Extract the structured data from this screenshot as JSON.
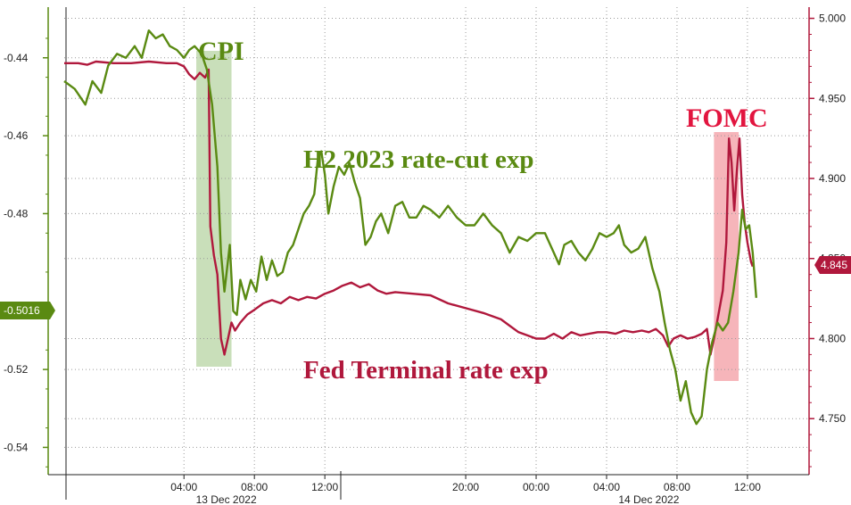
{
  "chart_data": {
    "type": "line",
    "left_axis": {
      "ticks": [
        "-0.44",
        "-0.46",
        "-0.48",
        "-0.52",
        "-0.54"
      ],
      "tick_values": [
        -0.44,
        -0.46,
        -0.48,
        -0.52,
        -0.54
      ],
      "range": [
        -0.547,
        -0.427
      ]
    },
    "right_axis": {
      "ticks": [
        "5.000",
        "4.950",
        "4.900",
        "4.850",
        "4.800",
        "4.750"
      ],
      "tick_values": [
        5.0,
        4.95,
        4.9,
        4.85,
        4.8,
        4.75
      ],
      "range": [
        4.715,
        5.007
      ]
    },
    "x_axis": {
      "ticks": [
        "04:00",
        "08:00",
        "12:00",
        "20:00",
        "00:00",
        "04:00",
        "08:00",
        "12:00"
      ],
      "tick_hours": [
        4,
        8,
        12,
        20,
        24,
        28,
        32,
        36
      ],
      "dates": [
        "13 Dec 2022",
        "14 Dec 2022"
      ],
      "date_hours": [
        6.4,
        30.4
      ],
      "range_hours": [
        -2.8,
        39.5
      ]
    },
    "badges": {
      "left_value": "-0.5016",
      "right_value": "4.845"
    },
    "colors": {
      "green": "#5a8a12",
      "red": "#b0183c",
      "cpi_band": "#b7d4a3",
      "fomc_band": "#f4a3a9"
    },
    "events": [
      {
        "label": "CPI",
        "start_hour": 4.7,
        "end_hour": 6.7
      },
      {
        "label": "FOMC",
        "start_hour": 34.1,
        "end_hour": 35.5
      }
    ],
    "series": [
      {
        "name": "H2 2023 rate-cut exp",
        "axis": "left",
        "points": [
          [
            -2.8,
            -0.446
          ],
          [
            -2.2,
            -0.448
          ],
          [
            -1.6,
            -0.452
          ],
          [
            -1.2,
            -0.446
          ],
          [
            -0.7,
            -0.449
          ],
          [
            -0.3,
            -0.442
          ],
          [
            0.2,
            -0.439
          ],
          [
            0.7,
            -0.44
          ],
          [
            1.2,
            -0.437
          ],
          [
            1.6,
            -0.44
          ],
          [
            2.0,
            -0.433
          ],
          [
            2.4,
            -0.435
          ],
          [
            2.8,
            -0.434
          ],
          [
            3.2,
            -0.437
          ],
          [
            3.6,
            -0.438
          ],
          [
            4.0,
            -0.44
          ],
          [
            4.3,
            -0.438
          ],
          [
            4.6,
            -0.437
          ],
          [
            5.0,
            -0.439
          ],
          [
            5.3,
            -0.443
          ],
          [
            5.6,
            -0.452
          ],
          [
            5.9,
            -0.468
          ],
          [
            6.1,
            -0.49
          ],
          [
            6.3,
            -0.5
          ],
          [
            6.6,
            -0.488
          ],
          [
            6.8,
            -0.505
          ],
          [
            7.0,
            -0.506
          ],
          [
            7.2,
            -0.497
          ],
          [
            7.5,
            -0.502
          ],
          [
            7.8,
            -0.497
          ],
          [
            8.1,
            -0.5
          ],
          [
            8.4,
            -0.491
          ],
          [
            8.7,
            -0.497
          ],
          [
            9.0,
            -0.492
          ],
          [
            9.3,
            -0.496
          ],
          [
            9.6,
            -0.495
          ],
          [
            9.9,
            -0.49
          ],
          [
            10.2,
            -0.488
          ],
          [
            10.5,
            -0.484
          ],
          [
            10.8,
            -0.48
          ],
          [
            11.1,
            -0.478
          ],
          [
            11.4,
            -0.475
          ],
          [
            11.6,
            -0.466
          ],
          [
            11.8,
            -0.464
          ],
          [
            12.0,
            -0.47
          ],
          [
            12.2,
            -0.48
          ],
          [
            12.5,
            -0.473
          ],
          [
            12.8,
            -0.468
          ],
          [
            13.1,
            -0.47
          ],
          [
            13.4,
            -0.467
          ],
          [
            13.7,
            -0.472
          ],
          [
            14.0,
            -0.476
          ],
          [
            14.3,
            -0.488
          ],
          [
            14.6,
            -0.486
          ],
          [
            14.9,
            -0.482
          ],
          [
            15.2,
            -0.48
          ],
          [
            15.6,
            -0.485
          ],
          [
            16.0,
            -0.478
          ],
          [
            16.4,
            -0.477
          ],
          [
            16.8,
            -0.481
          ],
          [
            17.2,
            -0.481
          ],
          [
            17.6,
            -0.478
          ],
          [
            18.0,
            -0.479
          ],
          [
            18.5,
            -0.481
          ],
          [
            19.0,
            -0.478
          ],
          [
            19.5,
            -0.481
          ],
          [
            20.0,
            -0.483
          ],
          [
            20.5,
            -0.483
          ],
          [
            21.0,
            -0.48
          ],
          [
            21.5,
            -0.483
          ],
          [
            22.0,
            -0.485
          ],
          [
            22.5,
            -0.49
          ],
          [
            23.0,
            -0.486
          ],
          [
            23.5,
            -0.487
          ],
          [
            24.0,
            -0.485
          ],
          [
            24.5,
            -0.485
          ],
          [
            25.0,
            -0.49
          ],
          [
            25.3,
            -0.493
          ],
          [
            25.6,
            -0.488
          ],
          [
            26.0,
            -0.487
          ],
          [
            26.4,
            -0.49
          ],
          [
            26.8,
            -0.492
          ],
          [
            27.2,
            -0.489
          ],
          [
            27.6,
            -0.485
          ],
          [
            28.0,
            -0.486
          ],
          [
            28.4,
            -0.485
          ],
          [
            28.7,
            -0.483
          ],
          [
            29.0,
            -0.488
          ],
          [
            29.4,
            -0.49
          ],
          [
            29.8,
            -0.489
          ],
          [
            30.2,
            -0.486
          ],
          [
            30.6,
            -0.494
          ],
          [
            31.0,
            -0.5
          ],
          [
            31.3,
            -0.508
          ],
          [
            31.6,
            -0.515
          ],
          [
            31.9,
            -0.52
          ],
          [
            32.2,
            -0.528
          ],
          [
            32.5,
            -0.523
          ],
          [
            32.8,
            -0.531
          ],
          [
            33.1,
            -0.534
          ],
          [
            33.4,
            -0.532
          ],
          [
            33.7,
            -0.52
          ],
          [
            34.0,
            -0.513
          ],
          [
            34.3,
            -0.508
          ],
          [
            34.6,
            -0.51
          ],
          [
            34.9,
            -0.508
          ],
          [
            35.2,
            -0.5
          ],
          [
            35.5,
            -0.49
          ],
          [
            35.7,
            -0.479
          ],
          [
            35.9,
            -0.484
          ],
          [
            36.1,
            -0.483
          ],
          [
            36.3,
            -0.49
          ],
          [
            36.5,
            -0.5016
          ]
        ]
      },
      {
        "name": "Fed Terminal rate exp",
        "axis": "right",
        "points": [
          [
            -2.8,
            4.972
          ],
          [
            -2.0,
            4.972
          ],
          [
            -1.5,
            4.971
          ],
          [
            -1.0,
            4.973
          ],
          [
            0.0,
            4.972
          ],
          [
            1.0,
            4.972
          ],
          [
            2.0,
            4.973
          ],
          [
            3.0,
            4.972
          ],
          [
            3.6,
            4.972
          ],
          [
            4.0,
            4.97
          ],
          [
            4.3,
            4.965
          ],
          [
            4.6,
            4.962
          ],
          [
            4.9,
            4.966
          ],
          [
            5.2,
            4.963
          ],
          [
            5.4,
            4.968
          ],
          [
            5.5,
            4.87
          ],
          [
            5.7,
            4.852
          ],
          [
            5.9,
            4.84
          ],
          [
            6.1,
            4.8
          ],
          [
            6.3,
            4.79
          ],
          [
            6.5,
            4.8
          ],
          [
            6.7,
            4.81
          ],
          [
            6.9,
            4.805
          ],
          [
            7.2,
            4.81
          ],
          [
            7.6,
            4.815
          ],
          [
            8.0,
            4.818
          ],
          [
            8.5,
            4.822
          ],
          [
            9.0,
            4.824
          ],
          [
            9.5,
            4.822
          ],
          [
            10.0,
            4.826
          ],
          [
            10.5,
            4.824
          ],
          [
            11.0,
            4.826
          ],
          [
            11.5,
            4.825
          ],
          [
            12.0,
            4.828
          ],
          [
            12.5,
            4.83
          ],
          [
            13.0,
            4.833
          ],
          [
            13.5,
            4.835
          ],
          [
            14.0,
            4.832
          ],
          [
            14.5,
            4.834
          ],
          [
            15.0,
            4.83
          ],
          [
            15.5,
            4.828
          ],
          [
            16.0,
            4.829
          ],
          [
            17.0,
            4.828
          ],
          [
            18.0,
            4.827
          ],
          [
            19.0,
            4.822
          ],
          [
            20.0,
            4.819
          ],
          [
            21.0,
            4.816
          ],
          [
            22.0,
            4.812
          ],
          [
            22.5,
            4.808
          ],
          [
            23.0,
            4.804
          ],
          [
            23.5,
            4.802
          ],
          [
            24.0,
            4.8
          ],
          [
            24.5,
            4.8
          ],
          [
            25.0,
            4.803
          ],
          [
            25.5,
            4.8
          ],
          [
            26.0,
            4.804
          ],
          [
            26.5,
            4.802
          ],
          [
            27.0,
            4.803
          ],
          [
            27.5,
            4.804
          ],
          [
            28.0,
            4.804
          ],
          [
            28.5,
            4.803
          ],
          [
            29.0,
            4.805
          ],
          [
            29.5,
            4.804
          ],
          [
            30.0,
            4.805
          ],
          [
            30.4,
            4.804
          ],
          [
            30.8,
            4.806
          ],
          [
            31.2,
            4.802
          ],
          [
            31.5,
            4.795
          ],
          [
            31.8,
            4.8
          ],
          [
            32.2,
            4.802
          ],
          [
            32.6,
            4.8
          ],
          [
            33.0,
            4.801
          ],
          [
            33.4,
            4.803
          ],
          [
            33.7,
            4.806
          ],
          [
            33.9,
            4.79
          ],
          [
            34.1,
            4.8
          ],
          [
            34.3,
            4.812
          ],
          [
            34.6,
            4.83
          ],
          [
            34.8,
            4.86
          ],
          [
            34.95,
            4.925
          ],
          [
            35.1,
            4.91
          ],
          [
            35.25,
            4.88
          ],
          [
            35.4,
            4.905
          ],
          [
            35.55,
            4.925
          ],
          [
            35.7,
            4.89
          ],
          [
            35.85,
            4.872
          ],
          [
            36.0,
            4.86
          ],
          [
            36.2,
            4.848
          ],
          [
            36.3,
            4.845
          ]
        ]
      }
    ],
    "labels": {
      "cpi": "CPI",
      "fomc": "FOMC",
      "h2": "H2 2023 rate-cut exp",
      "fed": "Fed Terminal rate exp"
    }
  }
}
